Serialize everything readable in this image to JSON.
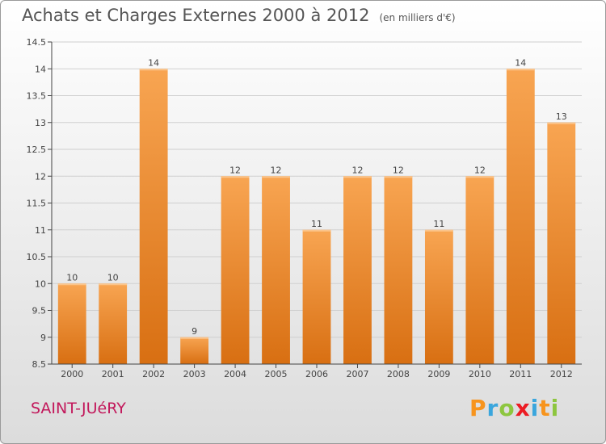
{
  "title": "Achats et Charges Externes 2000 à 2012",
  "subtitle": "(en milliers d'€)",
  "commune": "SAINT-JUéRY",
  "logo": {
    "letters": [
      "P",
      "r",
      "o",
      "x",
      "i",
      "t",
      "i"
    ],
    "colors": [
      "#f7941d",
      "#3aa6dd",
      "#8dc63f",
      "#ec1c24",
      "#3aa6dd",
      "#f7941d",
      "#8dc63f"
    ]
  },
  "colors": {
    "bar_light": "#f8a552",
    "bar_dark": "#d86f12",
    "axis": "#444444",
    "grid": "#cfcfcf"
  },
  "chart_data": {
    "type": "bar",
    "title": "Achats et Charges Externes 2000 à 2012",
    "subtitle": "(en milliers d'€)",
    "categories": [
      "2000",
      "2001",
      "2002",
      "2003",
      "2004",
      "2005",
      "2006",
      "2007",
      "2008",
      "2009",
      "2010",
      "2011",
      "2012"
    ],
    "values": [
      10,
      10,
      14,
      9,
      12,
      12,
      11,
      12,
      12,
      11,
      12,
      14,
      13
    ],
    "value_labels": [
      "10",
      "10",
      "14",
      "9",
      "12",
      "12",
      "11",
      "12",
      "12",
      "11",
      "12",
      "14",
      "13"
    ],
    "yticks": [
      8.5,
      9,
      9.5,
      10,
      10.5,
      11,
      11.5,
      12,
      12.5,
      13,
      13.5,
      14,
      14.5
    ],
    "ytick_labels": [
      "8.5",
      "9",
      "9.5",
      "10",
      "10.5",
      "11",
      "11.5",
      "12",
      "12.5",
      "13",
      "13.5",
      "14",
      "14.5"
    ],
    "ylim": [
      8.5,
      14.5
    ],
    "xlabel": "",
    "ylabel": "",
    "grid": true,
    "legend": "none"
  }
}
